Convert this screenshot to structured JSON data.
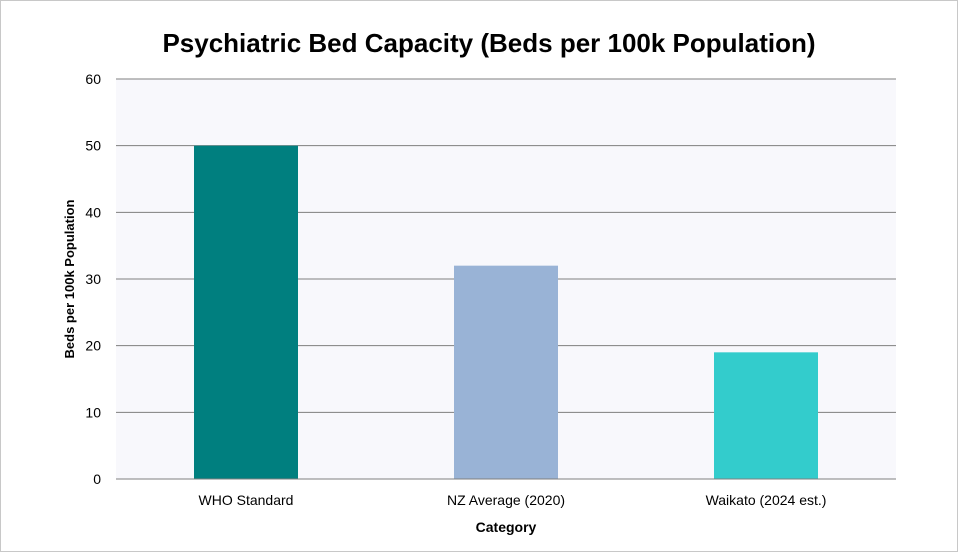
{
  "chart_data": {
    "type": "bar",
    "title": "Psychiatric Bed Capacity (Beds per 100k Population)",
    "xlabel": "Category",
    "ylabel": "Beds per 100k Population",
    "categories": [
      "WHO Standard",
      "NZ Average (2020)",
      "Waikato (2024 est.)"
    ],
    "values": [
      50,
      32,
      19
    ],
    "colors": [
      "#007f7f",
      "#99b3d6",
      "#33cccc"
    ],
    "ylim": [
      0,
      60
    ],
    "yticks": [
      0,
      10,
      20,
      30,
      40,
      50,
      60
    ],
    "grid": true,
    "plot_background": "#f8f8fc",
    "legend": "none"
  }
}
